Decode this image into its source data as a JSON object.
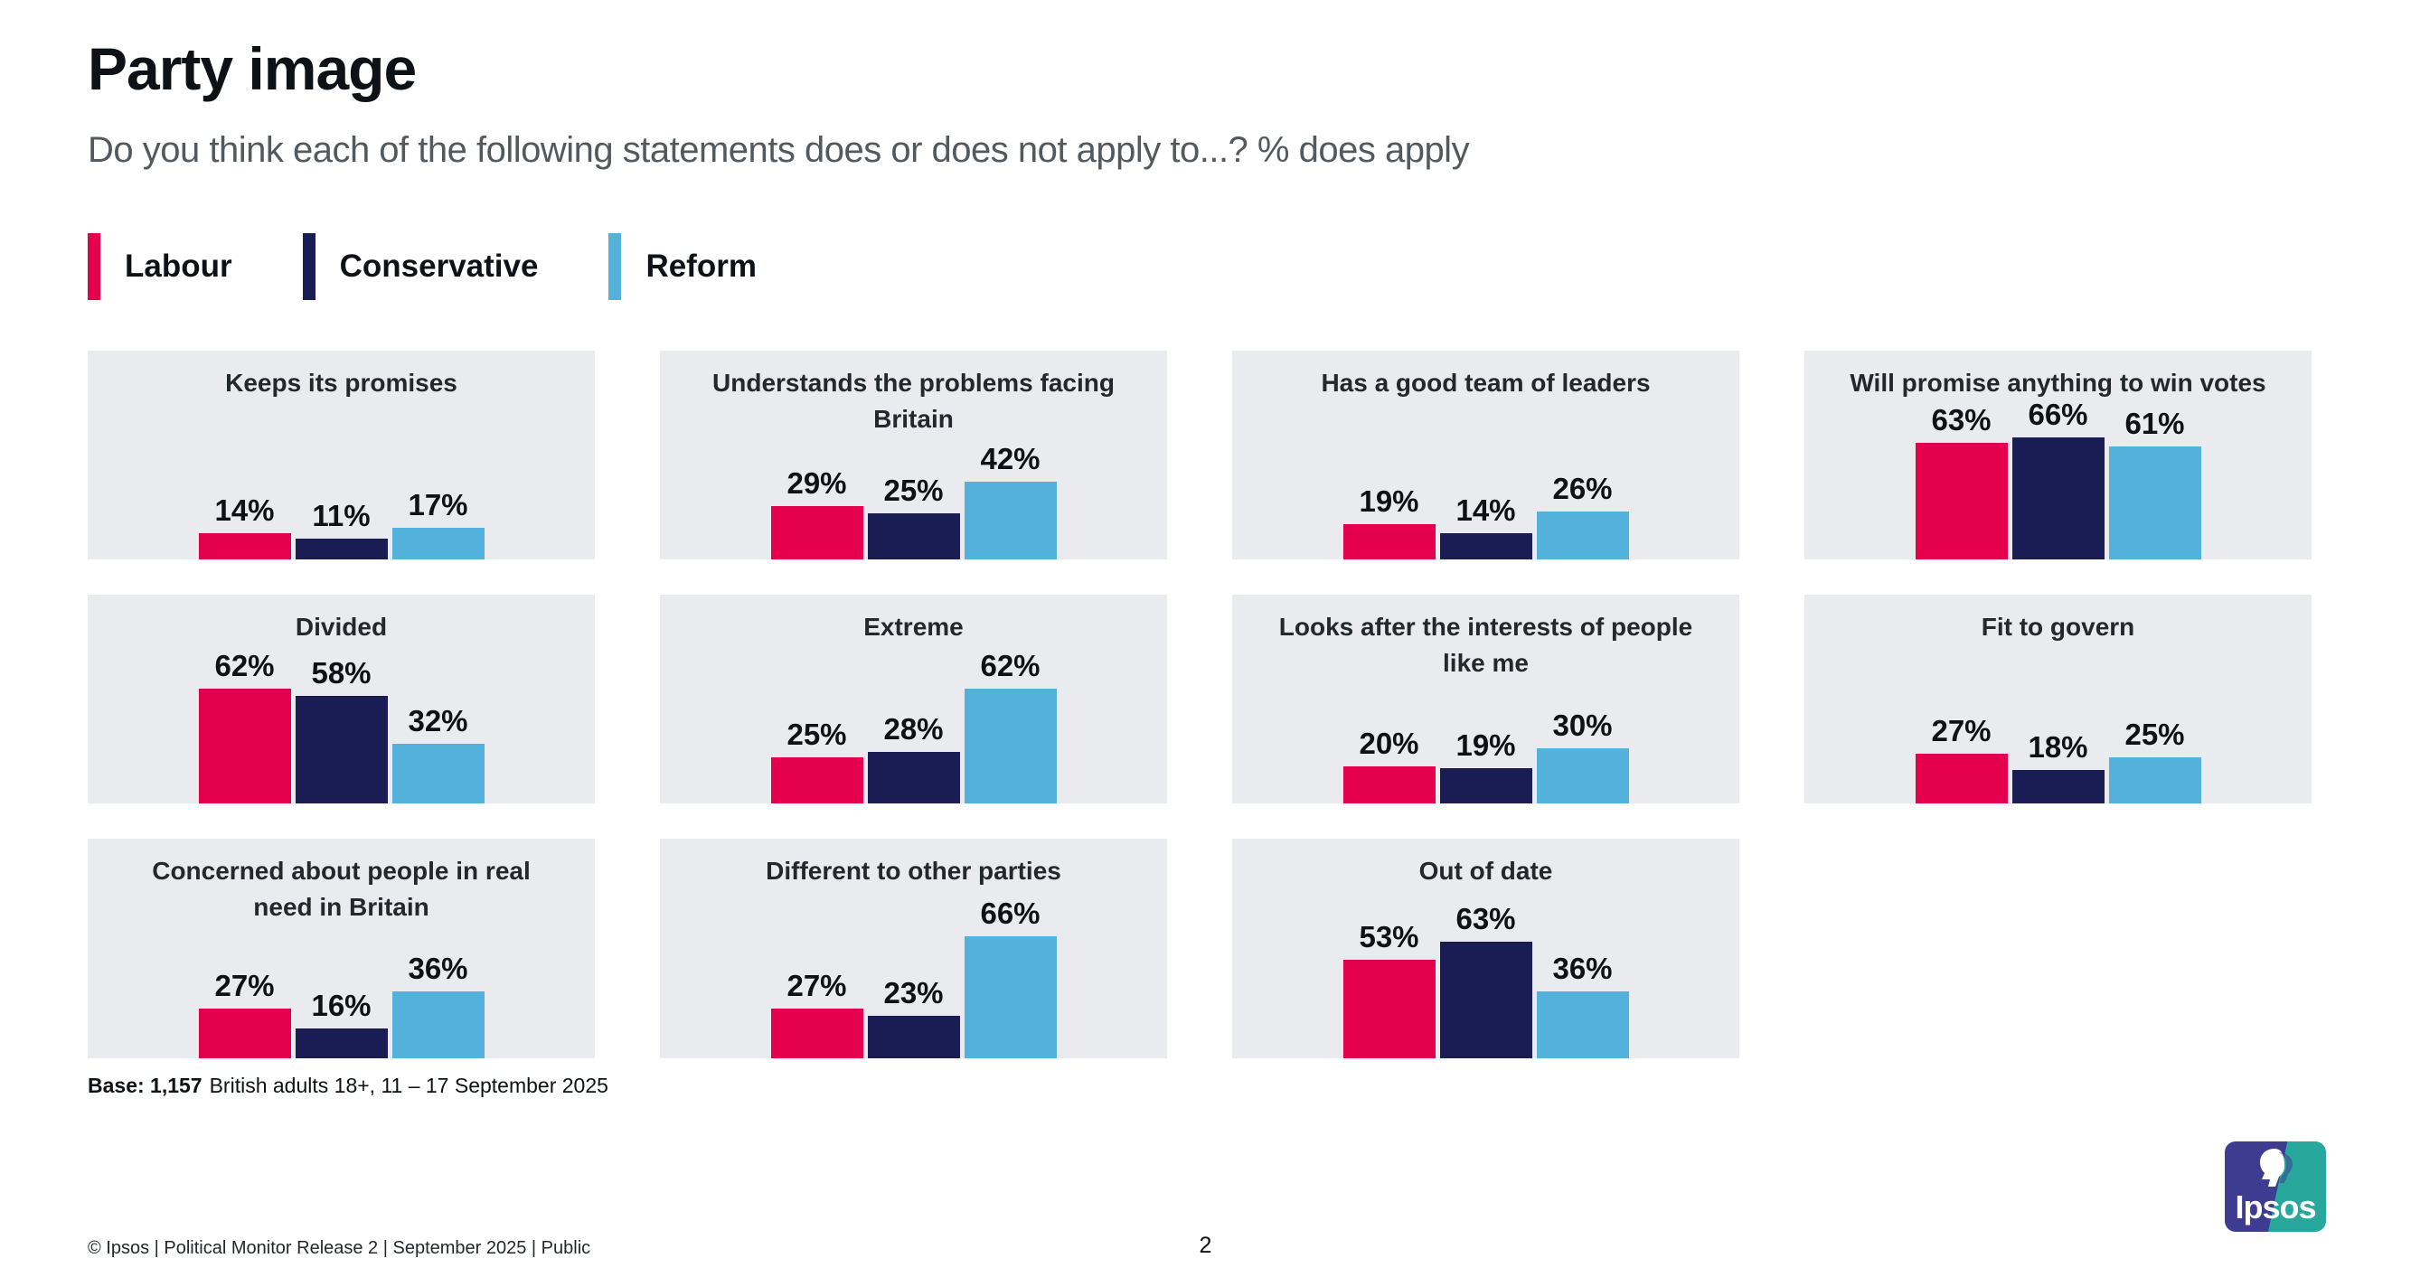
{
  "page": {
    "title": "Party image",
    "subtitle": "Do you think each of the following statements does or does not apply to...? % does apply",
    "base_bold": "Base: 1,157",
    "base_rest": "British adults 18+, 11 – 17 September 2025",
    "footer": "© Ipsos | Political Monitor Release 2 | September 2025 | Public",
    "page_number": "2",
    "logo_text": "Ipsos"
  },
  "legend": [
    {
      "label": "Labour",
      "color": "#e4004d"
    },
    {
      "label": "Conservative",
      "color": "#191d54"
    },
    {
      "label": "Reform",
      "color": "#54b1dc"
    }
  ],
  "chart_data": {
    "type": "bar",
    "unit": "%",
    "value_range": [
      0,
      100
    ],
    "grid": false,
    "legend_position": "top-left",
    "series": [
      "Labour",
      "Conservative",
      "Reform"
    ],
    "series_colors": [
      "#e4004d",
      "#191d54",
      "#54b1dc"
    ],
    "panel_background": "#e9ebee",
    "panels": [
      {
        "title": "Keeps its promises",
        "values": [
          14,
          11,
          17
        ]
      },
      {
        "title": "Understands the problems facing Britain",
        "values": [
          29,
          25,
          42
        ]
      },
      {
        "title": "Has a good team of leaders",
        "values": [
          19,
          14,
          26
        ]
      },
      {
        "title": "Will promise anything to win votes",
        "values": [
          63,
          66,
          61
        ]
      },
      {
        "title": "Divided",
        "values": [
          62,
          58,
          32
        ]
      },
      {
        "title": "Extreme",
        "values": [
          25,
          28,
          62
        ]
      },
      {
        "title": "Looks after the interests of people like me",
        "values": [
          20,
          19,
          30
        ]
      },
      {
        "title": "Fit to govern",
        "values": [
          27,
          18,
          25
        ]
      },
      {
        "title": "Concerned about people in real need in Britain",
        "values": [
          27,
          16,
          36
        ]
      },
      {
        "title": "Different to other parties",
        "values": [
          27,
          23,
          66
        ]
      },
      {
        "title": "Out of date",
        "values": [
          53,
          63,
          36
        ]
      }
    ]
  }
}
